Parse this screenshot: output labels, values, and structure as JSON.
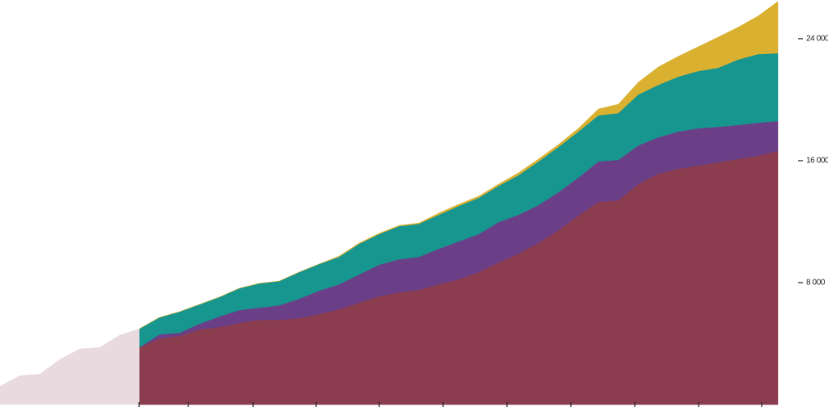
{
  "chart_data": {
    "type": "area",
    "stacked": true,
    "categories": [
      null,
      null,
      null,
      null,
      null,
      null,
      null,
      null,
      null,
      null,
      null,
      null,
      null,
      null,
      null,
      null,
      null,
      null,
      null,
      null,
      null,
      null,
      null,
      null,
      null,
      null,
      null,
      null,
      null,
      null,
      null,
      null,
      null,
      null,
      null,
      null,
      null,
      null,
      null,
      null
    ],
    "background_series": {
      "color": "#e8dade",
      "values": [
        1220,
        1910,
        2010,
        2970,
        3660,
        3760,
        4560,
        4980,
        null,
        null,
        null,
        null,
        null,
        null,
        null,
        null,
        null,
        null,
        null,
        null,
        null,
        null,
        null,
        null,
        null,
        null,
        null,
        null,
        null,
        null,
        null,
        null,
        null,
        null,
        null,
        null,
        null,
        null,
        null,
        null
      ]
    },
    "series": [
      {
        "color": "#8b3d4f",
        "values": [
          null,
          null,
          null,
          null,
          null,
          null,
          null,
          3760,
          4340,
          4500,
          4930,
          5090,
          5350,
          5560,
          5560,
          5670,
          5930,
          6250,
          6680,
          7100,
          7360,
          7520,
          7890,
          8210,
          8690,
          9320,
          9910,
          10600,
          11440,
          12400,
          13300,
          13400,
          14460,
          15150,
          15470,
          15680,
          15890,
          16110,
          16320,
          16640
        ]
      },
      {
        "color": "#6a3f87",
        "values": [
          null,
          null,
          null,
          null,
          null,
          null,
          null,
          0,
          270,
          210,
          370,
          690,
          850,
          800,
          950,
          1270,
          1540,
          1640,
          1850,
          2070,
          2170,
          2170,
          2330,
          2490,
          2490,
          2650,
          2540,
          2490,
          2490,
          2490,
          2650,
          2650,
          2540,
          2380,
          2440,
          2440,
          2330,
          2230,
          2170,
          1960
        ]
      },
      {
        "color": "#17958f",
        "values": [
          null,
          null,
          null,
          null,
          null,
          null,
          null,
          1220,
          1110,
          1380,
          1270,
          1270,
          1430,
          1590,
          1590,
          1750,
          1750,
          1800,
          2010,
          2010,
          2170,
          2170,
          2230,
          2330,
          2380,
          2380,
          2600,
          2860,
          2970,
          3020,
          3020,
          3070,
          3340,
          3440,
          3600,
          3760,
          3870,
          4290,
          4500,
          4450
        ]
      },
      {
        "color": "#d9b02f",
        "values": [
          null,
          null,
          null,
          null,
          null,
          null,
          null,
          0,
          0,
          0,
          0,
          0,
          0,
          0,
          0,
          0,
          0,
          50,
          50,
          50,
          50,
          50,
          110,
          110,
          110,
          110,
          160,
          160,
          160,
          210,
          420,
          580,
          800,
          1170,
          1330,
          1590,
          2010,
          2120,
          2490,
          3390
        ]
      }
    ],
    "ylim": [
      0,
      26540
    ],
    "yticks": [
      {
        "value": 8000,
        "label": "8 000"
      },
      {
        "value": 16000,
        "label": "16 000"
      },
      {
        "value": 24000,
        "label": "24 000"
      }
    ]
  }
}
